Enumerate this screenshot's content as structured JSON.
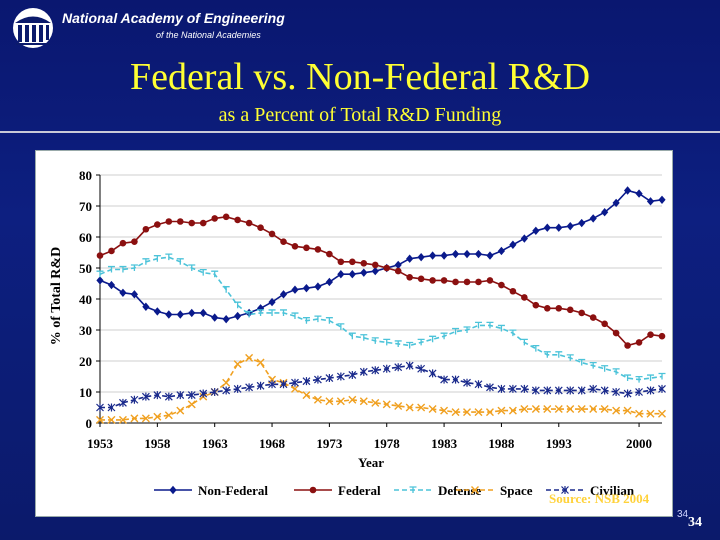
{
  "header": {
    "org_name": "National Academy of Engineering",
    "org_sub": "of the National Academies"
  },
  "slide": {
    "title": "Federal vs. Non-Federal R&D",
    "subtitle": "as a Percent of Total R&D Funding",
    "source": "Source: NSB 2004",
    "page_small": "34",
    "page_number": "34"
  },
  "chart_data": {
    "type": "line",
    "title": "",
    "xlabel": "Year",
    "ylabel": "% of Total R&D",
    "xlim": [
      1953,
      2002
    ],
    "ylim": [
      0,
      80
    ],
    "yticks": [
      0,
      10,
      20,
      30,
      40,
      50,
      60,
      70,
      80
    ],
    "xticks": [
      1953,
      1958,
      1963,
      1968,
      1973,
      1978,
      1983,
      1988,
      1993,
      2000
    ],
    "legend_position": "bottom",
    "x": [
      1953,
      1954,
      1955,
      1956,
      1957,
      1958,
      1959,
      1960,
      1961,
      1962,
      1963,
      1964,
      1965,
      1966,
      1967,
      1968,
      1969,
      1970,
      1971,
      1972,
      1973,
      1974,
      1975,
      1976,
      1977,
      1978,
      1979,
      1980,
      1981,
      1982,
      1983,
      1984,
      1985,
      1986,
      1987,
      1988,
      1989,
      1990,
      1991,
      1992,
      1993,
      1994,
      1995,
      1996,
      1997,
      1998,
      1999,
      2000,
      2001,
      2002
    ],
    "series": [
      {
        "name": "Non-Federal",
        "color": "#0a1a8c",
        "marker": "diamond",
        "dash": "solid",
        "values": [
          46,
          44.5,
          42,
          41.5,
          37.5,
          36,
          35,
          35,
          35.5,
          35.5,
          34,
          33.5,
          34.5,
          35.5,
          37,
          39,
          41.5,
          43,
          43.5,
          44,
          45.5,
          48,
          48,
          48.5,
          49,
          50,
          51,
          53,
          53.5,
          54,
          54,
          54.5,
          54.5,
          54.5,
          54,
          55.5,
          57.5,
          59.5,
          62,
          63,
          63,
          63.5,
          64.5,
          66,
          68,
          71,
          75,
          74,
          71.5,
          72
        ]
      },
      {
        "name": "Federal",
        "color": "#8b1010",
        "marker": "circle",
        "dash": "solid",
        "values": [
          54,
          55.5,
          58,
          58.5,
          62.5,
          64,
          65,
          65,
          64.5,
          64.5,
          66,
          66.5,
          65.5,
          64.5,
          63,
          61,
          58.5,
          57,
          56.5,
          56,
          54.5,
          52,
          52,
          51.5,
          51,
          50,
          49,
          47,
          46.5,
          46,
          46,
          45.5,
          45.5,
          45.5,
          46,
          44.5,
          42.5,
          40.5,
          38,
          37,
          37,
          36.5,
          35.5,
          34,
          32,
          29,
          25,
          26,
          28.5,
          28
        ]
      },
      {
        "name": "Defense",
        "color": "#4cc3d9",
        "marker": "tee",
        "dash": "dashed",
        "values": [
          48,
          49.5,
          49.5,
          50,
          52,
          53,
          53.5,
          52,
          50,
          48.5,
          48,
          43,
          38,
          35,
          35.5,
          35.5,
          35.5,
          34.5,
          33,
          33.5,
          33,
          31,
          28,
          27.5,
          26.5,
          26,
          25.5,
          25,
          26,
          27,
          28,
          29.5,
          30,
          31.5,
          31.5,
          30.5,
          29,
          26,
          24,
          22,
          22,
          21,
          19.5,
          18.5,
          17.5,
          16.5,
          14.5,
          14,
          14.5,
          15
        ]
      },
      {
        "name": "Space",
        "color": "#f0a020",
        "marker": "x",
        "dash": "dashed",
        "values": [
          1,
          1,
          1,
          1.5,
          1.5,
          2,
          2.5,
          4,
          6,
          8.5,
          10,
          13,
          19,
          21,
          19.5,
          14,
          13,
          11,
          9,
          7.5,
          7,
          7,
          7.5,
          7,
          6.5,
          6,
          5.5,
          5,
          5,
          4.5,
          4,
          3.5,
          3.5,
          3.5,
          3.5,
          4,
          4,
          4.5,
          4.5,
          4.5,
          4.5,
          4.5,
          4.5,
          4.5,
          4.5,
          4,
          4,
          3,
          3,
          3
        ]
      },
      {
        "name": "Civilian",
        "color": "#1a2a8c",
        "marker": "asterisk",
        "dash": "dashed",
        "values": [
          5,
          5,
          6.5,
          7.5,
          8.5,
          9,
          8.5,
          9,
          9,
          9.5,
          10,
          10.5,
          11,
          11.5,
          12,
          12.5,
          12.5,
          13,
          13.5,
          14,
          14.5,
          15,
          15.5,
          16.5,
          17,
          17.5,
          18,
          18.5,
          17.5,
          16,
          14,
          14,
          13,
          12.5,
          11.5,
          11,
          11,
          11,
          10.5,
          10.5,
          10.5,
          10.5,
          10.5,
          11,
          10.5,
          10,
          9.5,
          10,
          10.5,
          11
        ]
      }
    ]
  }
}
